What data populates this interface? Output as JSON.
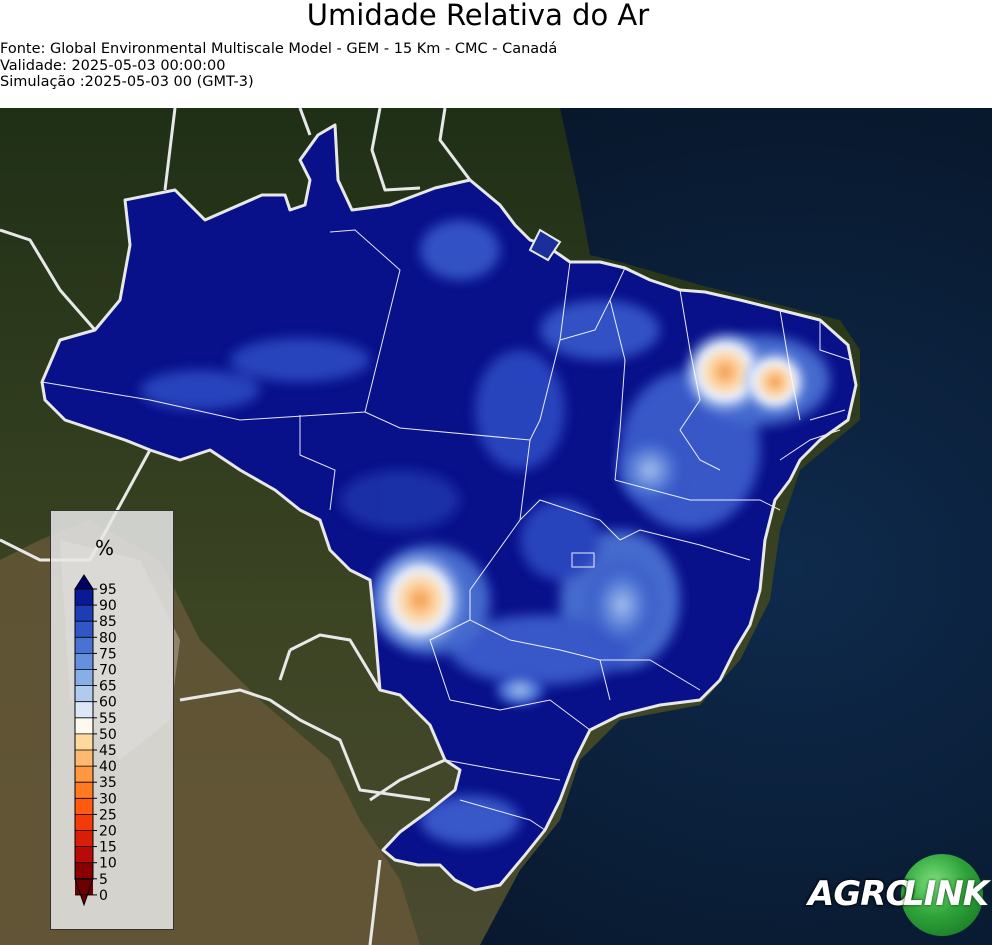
{
  "header": {
    "title": "Umidade Relativa do Ar",
    "source": "Fonte: Global Environmental Multiscale Model - GEM - 15 Km - CMC - Canadá",
    "validity": "Validade: 2025-05-03 00:00:00",
    "simulation": "Simulação :2025-05-03 00 (GMT-3)"
  },
  "legend": {
    "unit": "%",
    "ticks": [
      "95",
      "90",
      "85",
      "80",
      "75",
      "70",
      "65",
      "60",
      "55",
      "50",
      "45",
      "40",
      "35",
      "30",
      "25",
      "20",
      "15",
      "10",
      "5",
      "0"
    ],
    "colors": [
      "#000066",
      "#0a1a96",
      "#1e3cb4",
      "#3256c8",
      "#4a72d4",
      "#6690de",
      "#88aee6",
      "#b0cbee",
      "#dce8f8",
      "#fff8ee",
      "#ffd8a0",
      "#ffb870",
      "#ff9840",
      "#ff7a20",
      "#ff5a10",
      "#f23a0a",
      "#d81e08",
      "#b80a08",
      "#8a0000",
      "#6a0000"
    ]
  },
  "map": {
    "humid_color": "#08108a",
    "dry_color": "#f6a860",
    "ocean_color": "#0b1e3a",
    "land_color": "#2d3a1c"
  },
  "logo": {
    "text_left": "AGRO",
    "text_right": "LINK",
    "brand_color": "#2fa43a"
  }
}
